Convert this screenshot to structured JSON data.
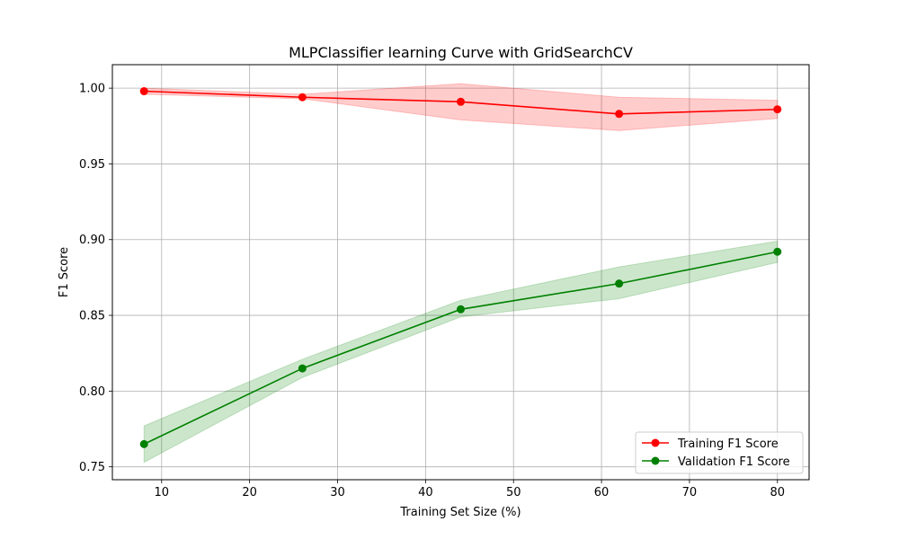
{
  "chart_data": {
    "type": "line",
    "title": "MLPClassifier learning Curve with GridSearchCV",
    "xlabel": "Training Set Size (%)",
    "ylabel": "F1 Score",
    "x": [
      8,
      26,
      44,
      62,
      80
    ],
    "xlim": [
      4.4,
      83.6
    ],
    "ylim": [
      0.7415,
      1.0155
    ],
    "xticks": [
      10,
      20,
      30,
      40,
      50,
      60,
      70,
      80
    ],
    "yticks": [
      0.75,
      0.8,
      0.85,
      0.9,
      0.95,
      1.0
    ],
    "xtick_labels": [
      "10",
      "20",
      "30",
      "40",
      "50",
      "60",
      "70",
      "80"
    ],
    "ytick_labels": [
      "0.75",
      "0.80",
      "0.85",
      "0.90",
      "0.95",
      "1.00"
    ],
    "grid": true,
    "legend_position": "bottom-right",
    "series": [
      {
        "name": "Training F1 Score",
        "color": "#ff0000",
        "band_color": "#ff0000",
        "values": [
          0.998,
          0.994,
          0.991,
          0.983,
          0.986
        ],
        "lower": [
          0.996,
          0.993,
          0.979,
          0.972,
          0.98
        ],
        "upper": [
          1.0,
          0.996,
          1.003,
          0.994,
          0.992
        ]
      },
      {
        "name": "Validation F1 Score",
        "color": "#008000",
        "band_color": "#008000",
        "values": [
          0.765,
          0.815,
          0.854,
          0.871,
          0.892
        ],
        "lower": [
          0.753,
          0.809,
          0.849,
          0.861,
          0.885
        ],
        "upper": [
          0.777,
          0.821,
          0.86,
          0.882,
          0.899
        ]
      }
    ]
  }
}
